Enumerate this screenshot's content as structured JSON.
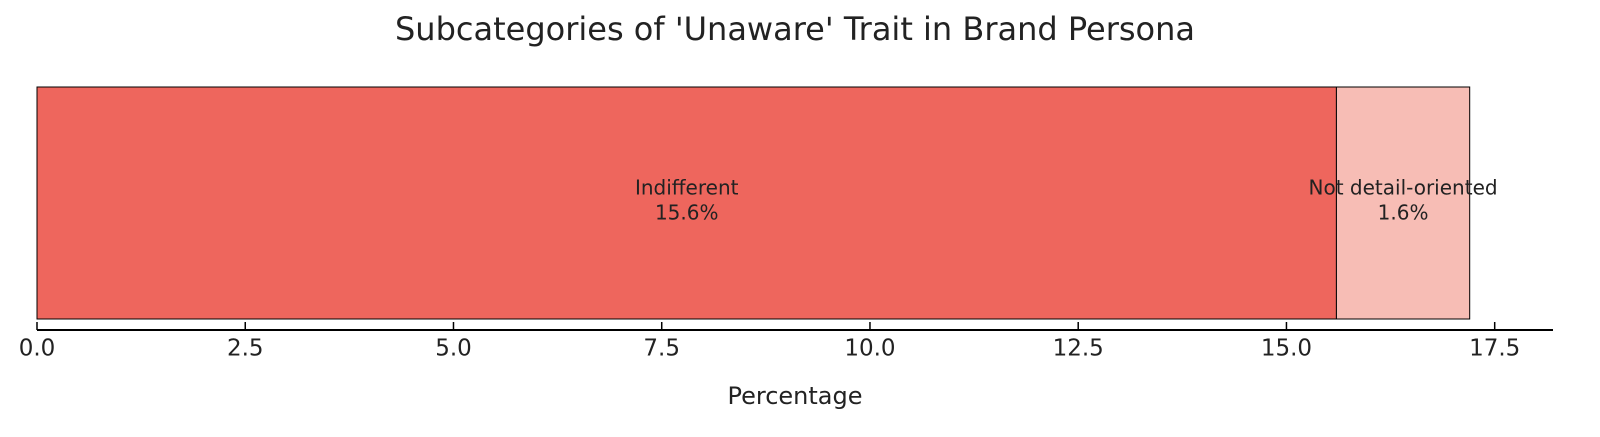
{
  "chart_data": {
    "type": "stacked-barh",
    "title": "Subcategories of 'Unaware' Trait in Brand Persona",
    "x_label": "Percentage",
    "series": [
      {
        "name": "Indifferent",
        "color": "#ee665d",
        "values": [
          15.6
        ],
        "value_labels": [
          "15.6%"
        ]
      },
      {
        "name": "Not detail-oriented",
        "color": "#f7bdb5",
        "values": [
          1.6
        ],
        "value_labels": [
          "1.6%"
        ]
      }
    ],
    "xlim": [
      0,
      18.2
    ],
    "xticks": [
      {
        "value": 0,
        "label": "0.0"
      },
      2.5,
      {
        "value": 5,
        "label": "5.0"
      },
      7.5,
      {
        "value": 10,
        "label": "10.0"
      },
      12.5,
      {
        "value": 15,
        "label": "15.0"
      },
      17.5
    ]
  }
}
